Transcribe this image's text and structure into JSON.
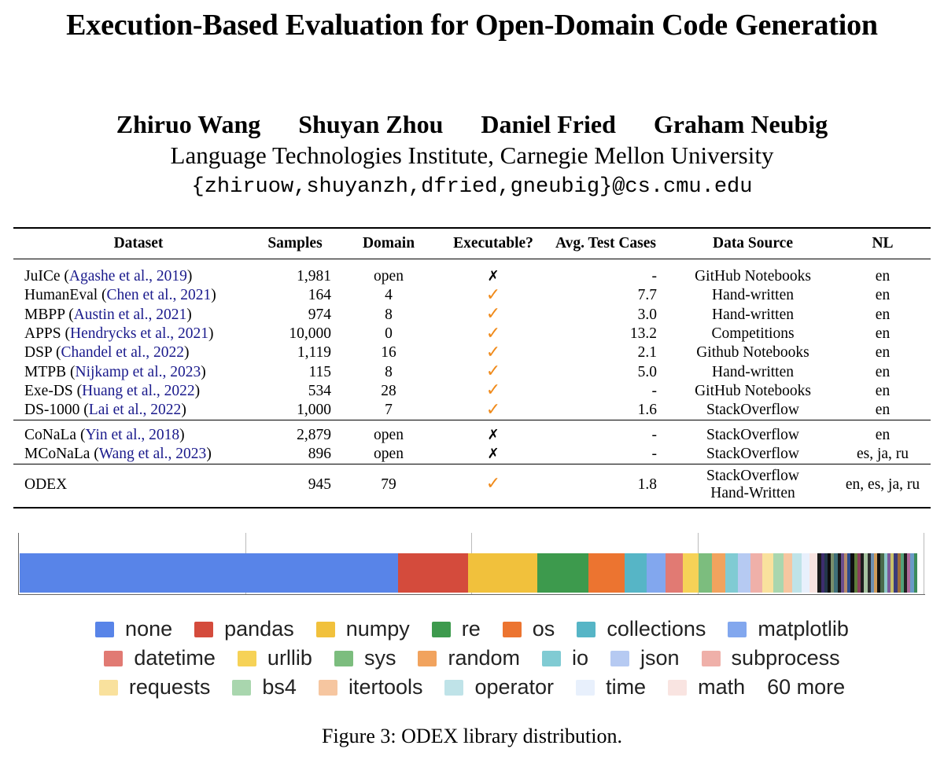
{
  "paper": {
    "title": "Execution-Based Evaluation for Open-Domain Code Generation",
    "authors": [
      "Zhiruo Wang",
      "Shuyan Zhou",
      "Daniel Fried",
      "Graham Neubig"
    ],
    "affiliation": "Language Technologies Institute, Carnegie Mellon University",
    "email": "{zhiruow,shuyanzh,dfried,gneubig}@cs.cmu.edu"
  },
  "table": {
    "headers": [
      "Dataset",
      "Samples",
      "Domain",
      "Executable?",
      "Avg. Test Cases",
      "Data Source",
      "NL"
    ],
    "group1": [
      {
        "name": "JuICe",
        "cite": "Agashe et al., 2019",
        "samples": "1,981",
        "domain": "open",
        "exec": "✗",
        "avg": "-",
        "source": "GitHub Notebooks",
        "nl": "en"
      },
      {
        "name": "HumanEval",
        "cite": "Chen et al., 2021",
        "samples": "164",
        "domain": "4",
        "exec": "✓",
        "avg": "7.7",
        "source": "Hand-written",
        "nl": "en"
      },
      {
        "name": "MBPP",
        "cite": "Austin et al., 2021",
        "samples": "974",
        "domain": "8",
        "exec": "✓",
        "avg": "3.0",
        "source": "Hand-written",
        "nl": "en"
      },
      {
        "name": "APPS",
        "cite": "Hendrycks et al., 2021",
        "samples": "10,000",
        "domain": "0",
        "exec": "✓",
        "avg": "13.2",
        "source": "Competitions",
        "nl": "en"
      },
      {
        "name": "DSP",
        "cite": "Chandel et al., 2022",
        "samples": "1,119",
        "domain": "16",
        "exec": "✓",
        "avg": "2.1",
        "source": "Github Notebooks",
        "nl": "en"
      },
      {
        "name": "MTPB",
        "cite": "Nijkamp et al., 2023",
        "samples": "115",
        "domain": "8",
        "exec": "✓",
        "avg": "5.0",
        "source": "Hand-written",
        "nl": "en"
      },
      {
        "name": "Exe-DS",
        "cite": "Huang et al., 2022",
        "samples": "534",
        "domain": "28",
        "exec": "✓",
        "avg": "-",
        "source": "GitHub Notebooks",
        "nl": "en"
      },
      {
        "name": "DS-1000",
        "cite": "Lai et al., 2022",
        "samples": "1,000",
        "domain": "7",
        "exec": "✓",
        "avg": "1.6",
        "source": "StackOverflow",
        "nl": "en"
      }
    ],
    "group2": [
      {
        "name": "CoNaLa",
        "cite": "Yin et al., 2018",
        "samples": "2,879",
        "domain": "open",
        "exec": "✗",
        "avg": "-",
        "source": "StackOverflow",
        "nl": "en"
      },
      {
        "name": "MCoNaLa",
        "cite": "Wang et al., 2023",
        "samples": "896",
        "domain": "open",
        "exec": "✗",
        "avg": "-",
        "source": "StackOverflow",
        "nl": "es, ja, ru"
      }
    ],
    "odex": {
      "name": "ODEX",
      "samples": "945",
      "domain": "79",
      "exec": "✓",
      "avg": "1.8",
      "source_1": "StackOverflow",
      "source_2": "Hand-Written",
      "nl": "en, es, ja, ru"
    }
  },
  "chart_data": {
    "type": "stacked-bar",
    "orientation": "horizontal",
    "unit": "share of ODEX samples (%)",
    "segments": [
      {
        "name": "none",
        "value": 41.8,
        "color": "#5884e8"
      },
      {
        "name": "pandas",
        "value": 7.8,
        "color": "#d44b3c"
      },
      {
        "name": "numpy",
        "value": 7.6,
        "color": "#f1c13c"
      },
      {
        "name": "re",
        "value": 5.7,
        "color": "#3d9a4d"
      },
      {
        "name": "os",
        "value": 4.0,
        "color": "#ec7430"
      },
      {
        "name": "collections",
        "value": 2.4,
        "color": "#56b5c6"
      },
      {
        "name": "matplotlib",
        "value": 2.1,
        "color": "#82a7ee"
      },
      {
        "name": "datetime",
        "value": 1.9,
        "color": "#e17a73"
      },
      {
        "name": "urllib",
        "value": 1.7,
        "color": "#f6d257"
      },
      {
        "name": "sys",
        "value": 1.5,
        "color": "#7cbd7e"
      },
      {
        "name": "random",
        "value": 1.5,
        "color": "#f1a35e"
      },
      {
        "name": "io",
        "value": 1.4,
        "color": "#80cbd3"
      },
      {
        "name": "json",
        "value": 1.4,
        "color": "#b6caf2"
      },
      {
        "name": "subprocess",
        "value": 1.3,
        "color": "#efb0a9"
      },
      {
        "name": "requests",
        "value": 1.2,
        "color": "#f9e19d"
      },
      {
        "name": "bs4",
        "value": 1.1,
        "color": "#a9d6ae"
      },
      {
        "name": "itertools",
        "value": 1.0,
        "color": "#f6c6a0"
      },
      {
        "name": "operator",
        "value": 1.0,
        "color": "#bfe3e8"
      },
      {
        "name": "time",
        "value": 0.9,
        "color": "#e8f0fc"
      },
      {
        "name": "math",
        "value": 0.9,
        "color": "#f9e4e1"
      }
    ],
    "other": {
      "label": "60 more",
      "value": 11.0,
      "colors": [
        "#1b1b1b",
        "#3d2d6e",
        "#23374a",
        "#0d0d0d",
        "#7a8e6a",
        "#3e6f78",
        "#1a1a1a",
        "#6a4d8e",
        "#b58a6a",
        "#2a4b8c",
        "#0f0f0f",
        "#5e7c3a",
        "#8a3c5a",
        "#1c1c1c",
        "#a6c3a0",
        "#2d2d2d",
        "#6c8fb3",
        "#cf9b5a",
        "#111111",
        "#4a6a4a",
        "#8cc7c7",
        "#7c5a9a",
        "#c9c06a",
        "#3a3a7a",
        "#9b6b3b",
        "#52a07a",
        "#222222",
        "#b06a9a",
        "#6a9ac6",
        "#3c8c5a"
      ]
    },
    "xlim": [
      0,
      100
    ],
    "gridlines": [
      0,
      25,
      50,
      75,
      100
    ]
  },
  "legend": {
    "rows": [
      [
        "none",
        "pandas",
        "numpy",
        "re",
        "os",
        "collections",
        "matplotlib"
      ],
      [
        "datetime",
        "urllib",
        "sys",
        "random",
        "io",
        "json",
        "subprocess"
      ],
      [
        "requests",
        "bs4",
        "itertools",
        "operator",
        "time",
        "math"
      ]
    ],
    "more_label": "60 more"
  },
  "caption": "Figure 3: ODEX library distribution."
}
